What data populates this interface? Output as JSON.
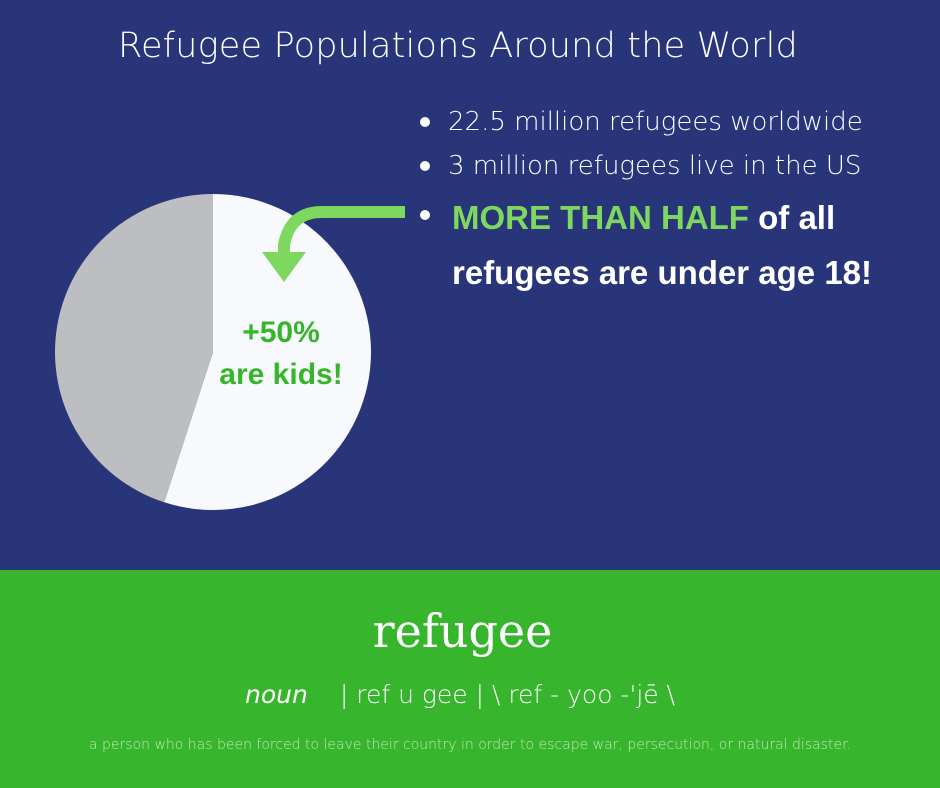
{
  "title": "Refugee Populations Around the World",
  "bullets": [
    "22.5 million refugees worldwide",
    "3 million refugees live in the US"
  ],
  "highlight": {
    "emphasis": "MORE THAN HALF",
    "rest": " of all refugees are under age 18!"
  },
  "chart_data": {
    "type": "pie",
    "slices": [
      {
        "label": "+50% are kids!",
        "value": 55,
        "color": "#f8f9fc"
      },
      {
        "label": "",
        "value": 45,
        "color": "#bdbec2"
      }
    ],
    "labels": [
      "+50%",
      "are kids!"
    ]
  },
  "colors": {
    "top_background": "#283579",
    "bottom_background": "#37b52d",
    "arrow": "#7ed860",
    "highlight_text": "#7ed860",
    "pie_label": "#36b52a"
  },
  "definition_section": {
    "word": "refugee",
    "part_of_speech": "noun",
    "syllables": "| ref  u  gee |  \\  ref - yoo -'jē  \\",
    "definition": "a person who has been forced to leave their country in order to escape war, persecution, or natural disaster."
  }
}
